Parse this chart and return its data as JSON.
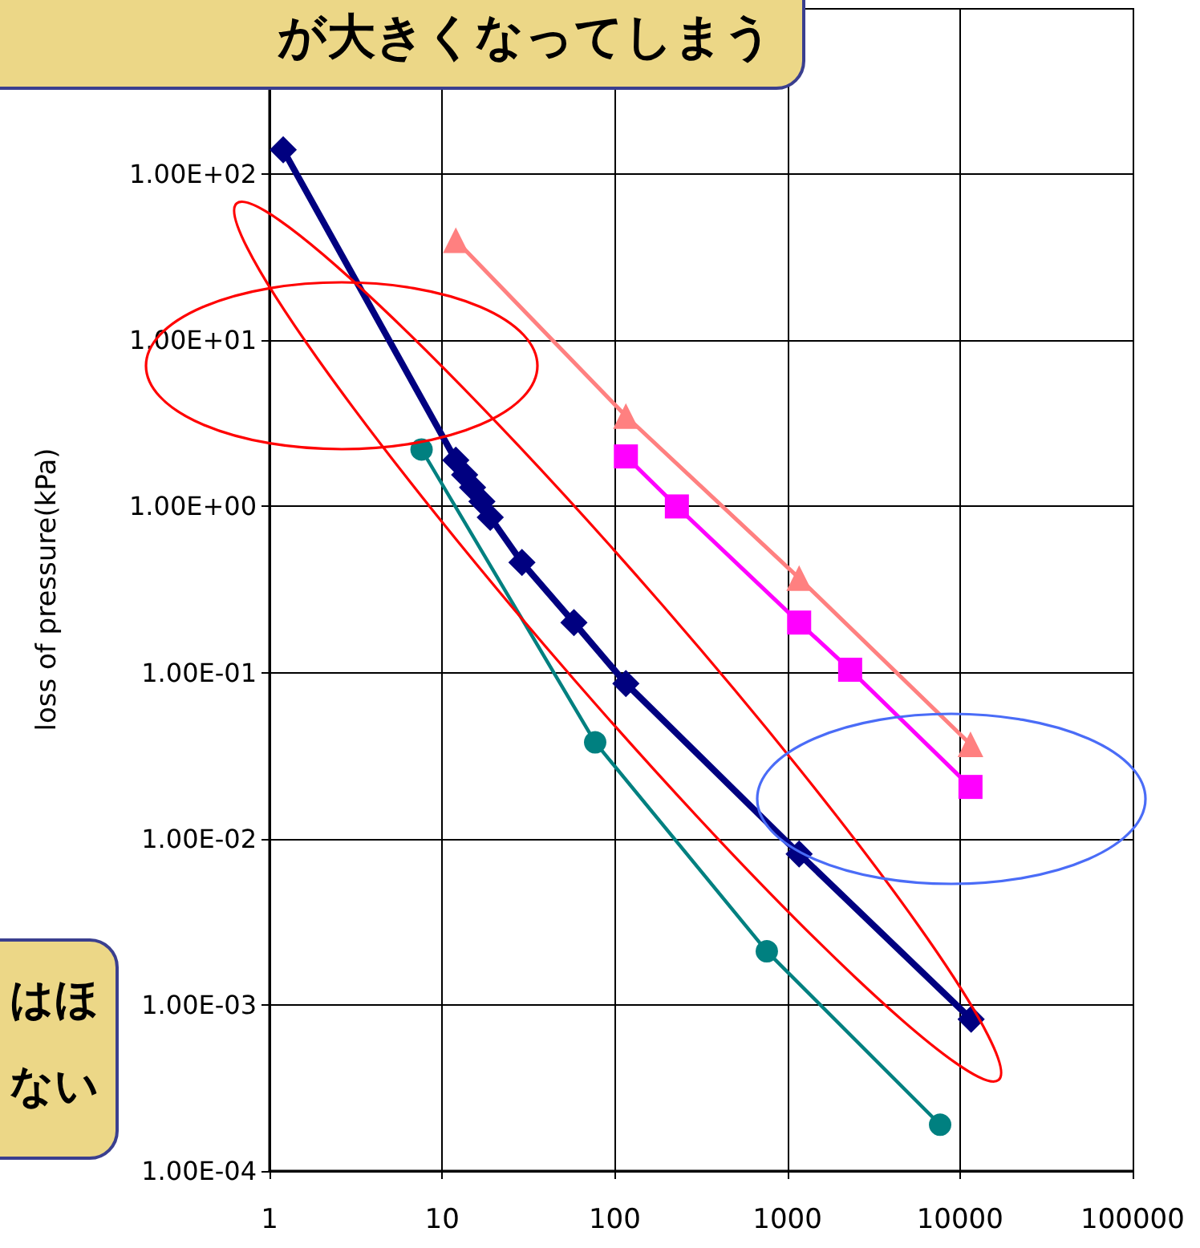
{
  "chart_data": {
    "type": "line",
    "ylabel": "loss of pressure(kPa)",
    "log": "xy",
    "grid": true,
    "xlim": [
      1,
      100000
    ],
    "xticks": [
      1,
      10,
      100,
      1000,
      10000,
      100000
    ],
    "ylim": [
      0.0001,
      1000
    ],
    "yticks": [
      {
        "value": 0.0001,
        "label": "1.00E-04"
      },
      {
        "value": 0.001,
        "label": "1.00E-03"
      },
      {
        "value": 0.01,
        "label": "1.00E-02"
      },
      {
        "value": 0.1,
        "label": "1.00E-01"
      },
      {
        "value": 1,
        "label": "1.00E+00"
      },
      {
        "value": 10,
        "label": "1.00E+01"
      },
      {
        "value": 100,
        "label": "1.00E+02"
      },
      {
        "value": 1000,
        "label": null
      }
    ],
    "series": [
      {
        "color": "#ff8080",
        "marker": "triangle",
        "x": [
          12,
          116,
          1170,
          11500
        ],
        "values": [
          40,
          3.5,
          0.37,
          0.037
        ]
      },
      {
        "color": "#ff00ff",
        "marker": "square",
        "x": [
          116,
          229,
          1170,
          2310,
          11500
        ],
        "values": [
          2.0,
          1.0,
          0.2,
          0.104,
          0.0205
        ]
      },
      {
        "color": "#008080",
        "marker": "circle",
        "x": [
          7.6,
          77,
          760,
          7670
        ],
        "values": [
          2.2,
          0.038,
          0.0021,
          0.00019
        ]
      },
      {
        "color": "#000080",
        "marker": "diamond",
        "x": [
          1.2,
          12,
          13.5,
          15,
          17,
          19,
          29,
          58,
          116,
          1170,
          11600
        ],
        "values": [
          140,
          1.9,
          1.55,
          1.3,
          1.07,
          0.86,
          0.46,
          0.2,
          0.086,
          0.0081,
          0.00082
        ]
      }
    ],
    "annotations": [
      "が大きくなってしまう",
      "はほない"
    ]
  }
}
